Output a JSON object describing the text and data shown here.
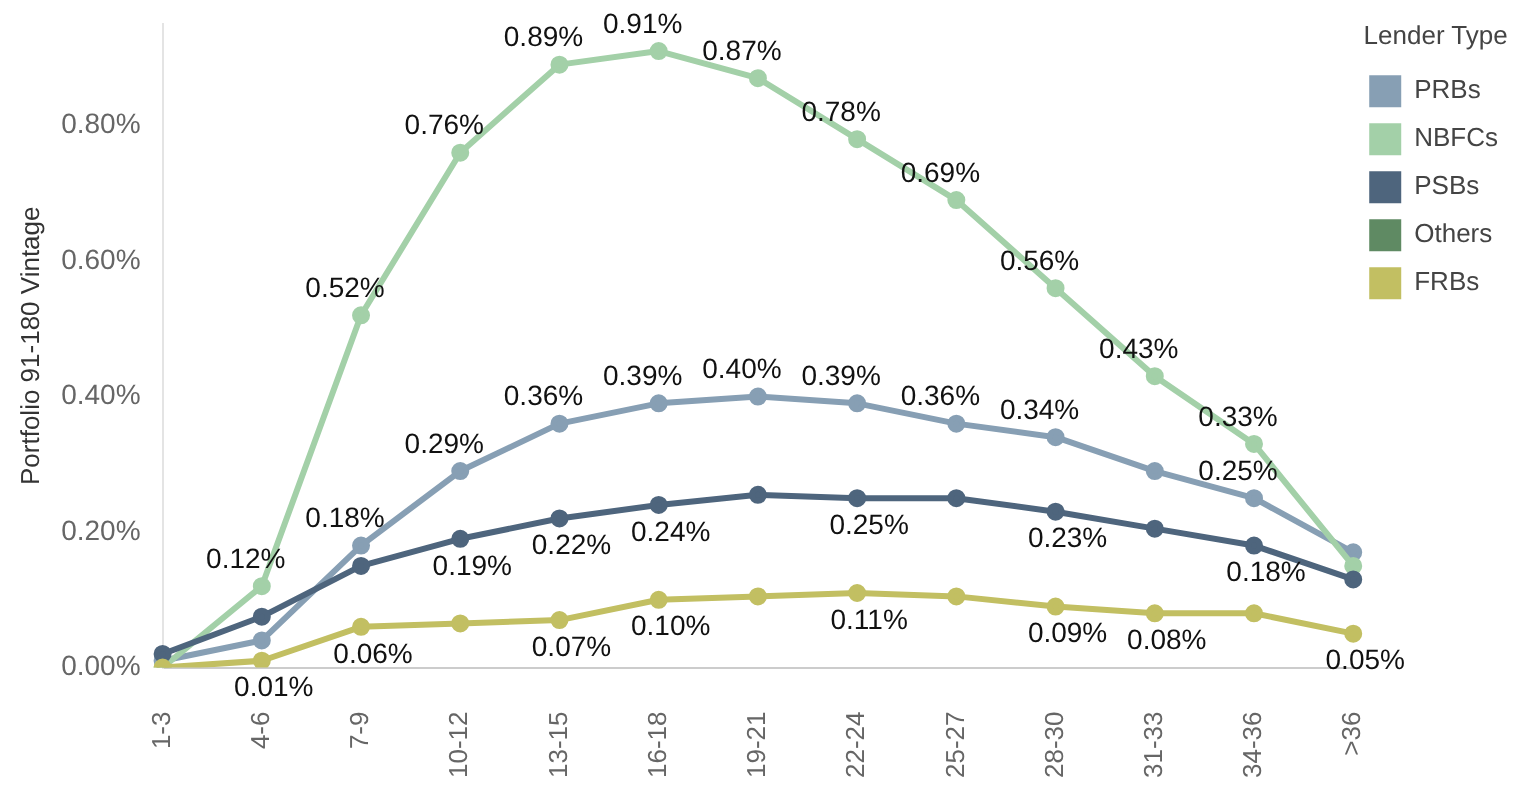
{
  "chart_data": {
    "type": "line",
    "ylabel": "Portfolio 91-180 Vintage",
    "legend_title": "Lender Type",
    "legend": "right",
    "marker": "circle",
    "grid": false,
    "categories": [
      "1-3",
      "4-6",
      "7-9",
      "10-12",
      "13-15",
      "16-18",
      "19-21",
      "22-24",
      "25-27",
      "28-30",
      "31-33",
      "34-36",
      ">36"
    ],
    "ylim": [
      0,
      0.95
    ],
    "yticks": [
      {
        "value": 0,
        "label": "0.00%"
      },
      {
        "value": 0.2,
        "label": "0.20%"
      },
      {
        "value": 0.4,
        "label": "0.40%"
      },
      {
        "value": 0.6,
        "label": "0.60%"
      },
      {
        "value": 0.8,
        "label": "0.80%"
      }
    ],
    "series": [
      {
        "name": "PRBs",
        "color": "#879fb4",
        "values": [
          0.01,
          0.04,
          0.18,
          0.29,
          0.36,
          0.39,
          0.4,
          0.39,
          0.36,
          0.34,
          0.29,
          0.25,
          0.17
        ],
        "value_labels": [
          null,
          null,
          "0.18%",
          "0.29%",
          "0.36%",
          "0.39%",
          "0.40%",
          "0.39%",
          "0.36%",
          "0.34%",
          null,
          "0.25%",
          null
        ]
      },
      {
        "name": "NBFCs",
        "color": "#a3d0a8",
        "values": [
          0,
          0.12,
          0.52,
          0.76,
          0.89,
          0.91,
          0.87,
          0.78,
          0.69,
          0.56,
          0.43,
          0.33,
          0.15
        ],
        "value_labels": [
          null,
          "0.12%",
          "0.52%",
          "0.76%",
          "0.89%",
          "0.91%",
          "0.87%",
          "0.78%",
          "0.69%",
          "0.56%",
          "0.43%",
          "0.33%",
          null
        ]
      },
      {
        "name": "PSBs",
        "color": "#4e657d",
        "values": [
          0.02,
          0.075,
          0.15,
          0.19,
          0.22,
          0.24,
          0.255,
          0.25,
          0.25,
          0.23,
          0.205,
          0.18,
          0.13
        ],
        "value_labels": [
          null,
          null,
          null,
          "0.19%",
          "0.22%",
          "0.24%",
          null,
          "0.25%",
          null,
          "0.23%",
          null,
          "0.18%",
          null
        ]
      },
      {
        "name": "Others",
        "color": "#5f8a63",
        "values": [
          null,
          null,
          null,
          null,
          null,
          null,
          null,
          null,
          null,
          null,
          null,
          null,
          null
        ]
      },
      {
        "name": "FRBs",
        "color": "#c2bf62",
        "values": [
          0,
          0.01,
          0.06,
          0.065,
          0.07,
          0.1,
          0.105,
          0.11,
          0.105,
          0.09,
          0.08,
          0.08,
          0.05
        ],
        "value_labels": [
          null,
          "0.01%",
          "0.06%",
          null,
          "0.07%",
          "0.10%",
          null,
          "0.11%",
          null,
          "0.09%",
          "0.08%",
          null,
          "0.05%"
        ]
      }
    ]
  }
}
